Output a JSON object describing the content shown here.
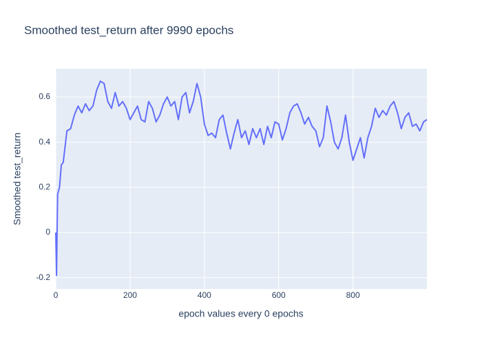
{
  "chart_data": {
    "type": "line",
    "title": "Smoothed test_return after 9990 epochs",
    "x_label": "epoch values every 0 epochs",
    "y_label": "Smoothed test_return",
    "x": [
      0,
      2,
      5,
      10,
      15,
      20,
      25,
      30,
      40,
      50,
      60,
      70,
      80,
      90,
      100,
      110,
      120,
      130,
      140,
      150,
      160,
      170,
      180,
      190,
      200,
      210,
      220,
      230,
      240,
      250,
      260,
      270,
      280,
      290,
      300,
      310,
      320,
      330,
      340,
      350,
      360,
      370,
      380,
      390,
      400,
      410,
      420,
      430,
      440,
      450,
      460,
      470,
      480,
      490,
      500,
      510,
      520,
      530,
      540,
      550,
      560,
      570,
      580,
      590,
      600,
      610,
      620,
      630,
      640,
      650,
      660,
      670,
      680,
      690,
      700,
      710,
      720,
      730,
      740,
      750,
      760,
      770,
      780,
      790,
      800,
      810,
      820,
      830,
      840,
      850,
      860,
      870,
      880,
      890,
      900,
      910,
      920,
      930,
      940,
      950,
      960,
      970,
      980,
      990,
      999
    ],
    "series": [
      {
        "name": "test_return",
        "color": "#636efa",
        "values": [
          0.0,
          -0.19,
          0.17,
          0.2,
          0.3,
          0.31,
          0.38,
          0.45,
          0.46,
          0.52,
          0.56,
          0.53,
          0.57,
          0.54,
          0.56,
          0.63,
          0.67,
          0.66,
          0.58,
          0.55,
          0.62,
          0.56,
          0.58,
          0.55,
          0.5,
          0.53,
          0.56,
          0.5,
          0.49,
          0.58,
          0.55,
          0.49,
          0.52,
          0.57,
          0.6,
          0.56,
          0.58,
          0.5,
          0.6,
          0.62,
          0.53,
          0.58,
          0.66,
          0.6,
          0.48,
          0.43,
          0.44,
          0.42,
          0.5,
          0.52,
          0.44,
          0.37,
          0.44,
          0.5,
          0.42,
          0.45,
          0.39,
          0.46,
          0.42,
          0.46,
          0.39,
          0.47,
          0.42,
          0.49,
          0.48,
          0.41,
          0.46,
          0.53,
          0.56,
          0.57,
          0.53,
          0.48,
          0.51,
          0.47,
          0.45,
          0.38,
          0.42,
          0.56,
          0.49,
          0.4,
          0.37,
          0.42,
          0.52,
          0.4,
          0.32,
          0.37,
          0.42,
          0.33,
          0.42,
          0.47,
          0.55,
          0.51,
          0.54,
          0.52,
          0.56,
          0.58,
          0.53,
          0.46,
          0.51,
          0.53,
          0.47,
          0.48,
          0.45,
          0.49,
          0.5
        ]
      }
    ],
    "xlim": [
      0,
      999
    ],
    "ylim": [
      -0.25,
      0.725
    ],
    "xticks": [
      0,
      200,
      400,
      600,
      800
    ],
    "yticks": [
      -0.2,
      0,
      0.2,
      0.4,
      0.6
    ],
    "grid": true
  }
}
